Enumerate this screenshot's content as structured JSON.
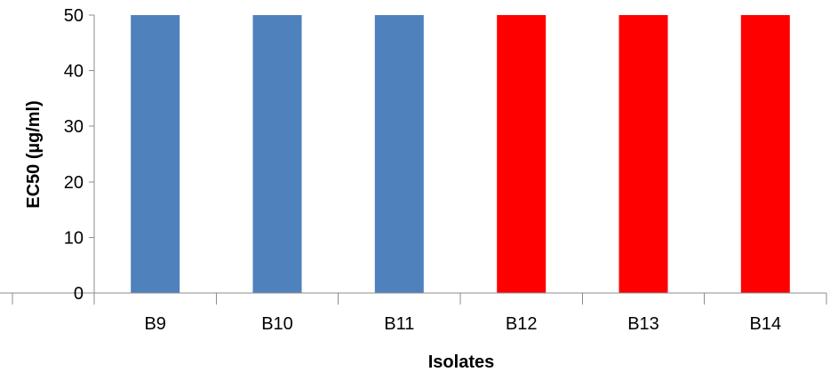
{
  "chart_data": {
    "type": "bar",
    "title": "",
    "xlabel": "Isolates",
    "ylabel": "EC50 (µg/ml)",
    "categories": [
      "B9",
      "B10",
      "B11",
      "B12",
      "B13",
      "B14"
    ],
    "values": [
      50,
      50,
      50,
      50,
      50,
      50
    ],
    "bar_colors": [
      "#4f81bd",
      "#4f81bd",
      "#4f81bd",
      "#ff0000",
      "#ff0000",
      "#ff0000"
    ],
    "ylim": [
      0,
      50
    ],
    "yticks": [
      0,
      10,
      20,
      30,
      40,
      50
    ],
    "grid": false,
    "legend": "none"
  }
}
